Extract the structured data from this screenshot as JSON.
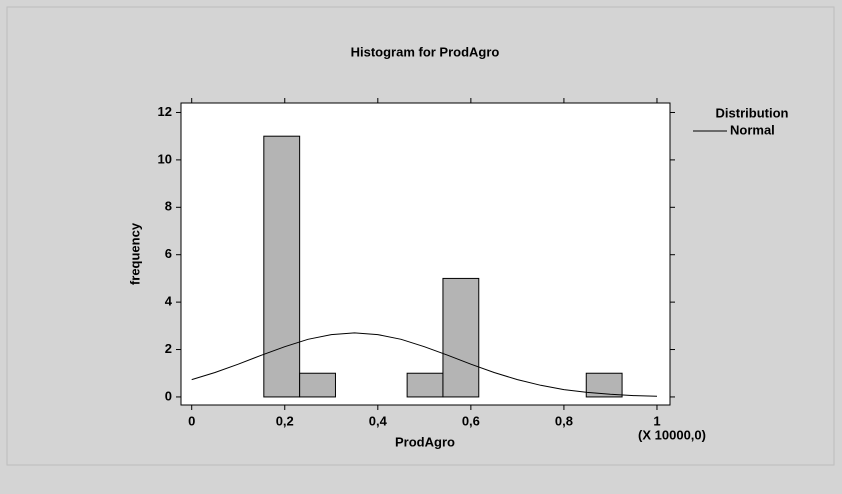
{
  "chart_data": {
    "type": "histogram",
    "title": "Histogram for ProdAgro",
    "x_label": "ProdAgro",
    "y_label": "frequency",
    "x_annotation": "(X 10000,0)",
    "bins": [
      0.155,
      0.232,
      0.309,
      0.386,
      0.463,
      0.54,
      0.617,
      0.694,
      0.771,
      0.848,
      0.925
    ],
    "counts": [
      11,
      1,
      0,
      0,
      1,
      5,
      0,
      0,
      0,
      1
    ],
    "color": "#b4b4b4",
    "curve": {
      "name": "Normal",
      "color": "#000000",
      "x": [
        0,
        0.05,
        0.1,
        0.15,
        0.2,
        0.25,
        0.3,
        0.35,
        0.4,
        0.45,
        0.5,
        0.55,
        0.6,
        0.65,
        0.7,
        0.75,
        0.8,
        0.85,
        0.9,
        0.95,
        1
      ],
      "values": [
        0.73,
        1.03,
        1.38,
        1.76,
        2.12,
        2.43,
        2.63,
        2.7,
        2.63,
        2.43,
        2.12,
        1.76,
        1.38,
        1.03,
        0.73,
        0.49,
        0.31,
        0.19,
        0.11,
        0.057,
        0.03
      ]
    },
    "legend_title": "Distribution",
    "legend_position": "right",
    "xlim": [
      -0.023,
      1.028
    ],
    "ylim": [
      -0.34,
      12.4
    ],
    "xticks": [
      0,
      {
        "value": 0.2,
        "label": "0,2"
      },
      {
        "value": 0.4,
        "label": "0,4"
      },
      {
        "value": 0.6,
        "label": "0,6"
      },
      {
        "value": 0.8,
        "label": "0,8"
      },
      1
    ],
    "yticks": [
      0,
      2,
      4,
      6,
      8,
      10,
      12
    ]
  }
}
